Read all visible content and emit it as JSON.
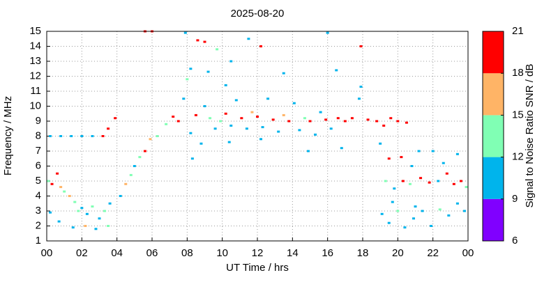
{
  "chart_data": {
    "type": "scatter",
    "title": "2025-08-20",
    "x_label": "UT Time / hrs",
    "y_label": "Frequency / MHz",
    "xlim": [
      0,
      24
    ],
    "xticks": [
      {
        "value": 0,
        "label": "00"
      },
      {
        "value": 2,
        "label": "02"
      },
      {
        "value": 4,
        "label": "04"
      },
      {
        "value": 6,
        "label": "06"
      },
      {
        "value": 8,
        "label": "08"
      },
      10,
      12,
      14,
      16,
      18,
      20,
      22,
      {
        "value": 24,
        "label": "00"
      }
    ],
    "ylim": [
      1,
      15
    ],
    "yticks": [
      1,
      2,
      3,
      4,
      5,
      6,
      7,
      8,
      9,
      10,
      11,
      12,
      13,
      14,
      15
    ],
    "grid": true,
    "colorbar": {
      "label": "Signal to Noise Ratio SNR / dB",
      "lim": [
        6,
        21
      ],
      "ticks": [
        6,
        9,
        12,
        15,
        18,
        21
      ],
      "colors": [
        "#8000ff",
        "#00b4ec",
        "#80ffb4",
        "#ffb466",
        "#ff0000"
      ]
    },
    "x": [
      0.1,
      0.3,
      0.6,
      0.8,
      1.0,
      1.3,
      1.6,
      2.0,
      2.3,
      2.6,
      3.0,
      3.3,
      3.5,
      0.2,
      0.7,
      1.5,
      2.2,
      2.8,
      3.6,
      1.8,
      0.2,
      0.8,
      1.4,
      2.0,
      2.6,
      3.2,
      3.5,
      3.9,
      4.5,
      4.8,
      5.0,
      5.3,
      5.6,
      5.9,
      4.2,
      6.3,
      6.8,
      7.2,
      7.5,
      7.8,
      8.0,
      8.2,
      8.5,
      8.8,
      9.0,
      9.3,
      9.6,
      9.9,
      10.2,
      10.5,
      10.8,
      11.1,
      11.4,
      11.7,
      12.0,
      12.3,
      12.6,
      12.9,
      13.2,
      13.5,
      13.8,
      14.1,
      14.4,
      14.7,
      15.0,
      15.3,
      15.6,
      15.9,
      16.2,
      16.6,
      17.0,
      17.4,
      17.8,
      17.9,
      16.8,
      14.9,
      12.2,
      10.4,
      8.3,
      5.6,
      6.0,
      7.9,
      8.6,
      9.0,
      9.7,
      10.5,
      11.5,
      12.2,
      13.5,
      16.0,
      16.5,
      17.9,
      8.2,
      10.2,
      9.2,
      18.3,
      18.8,
      19.2,
      19.6,
      20.0,
      20.5,
      19.0,
      19.5,
      20.2,
      20.8,
      21.2,
      19.3,
      19.8,
      20.3,
      20.7,
      21.3,
      21.8,
      22.3,
      22.8,
      23.2,
      23.6,
      23.9,
      19.1,
      19.5,
      20.0,
      20.4,
      20.9,
      21.4,
      21.9,
      22.4,
      22.9,
      23.4,
      23.8,
      19.7,
      21.0,
      22.6,
      23.4,
      22.0
    ],
    "values": [
      5.0,
      4.8,
      5.5,
      4.6,
      4.3,
      4.0,
      3.6,
      3.2,
      2.8,
      3.3,
      2.5,
      3.0,
      2.0,
      2.9,
      2.3,
      1.9,
      2.0,
      1.8,
      3.5,
      3.0,
      8.0,
      8.0,
      8.0,
      8.0,
      8.0,
      8.0,
      8.5,
      9.2,
      4.8,
      5.4,
      6.0,
      6.6,
      7.0,
      7.8,
      4.0,
      8.0,
      8.8,
      9.3,
      9.0,
      10.5,
      11.8,
      8.2,
      9.4,
      7.5,
      10.0,
      9.2,
      8.5,
      9.0,
      9.5,
      8.7,
      10.4,
      9.2,
      8.5,
      9.6,
      9.3,
      8.6,
      10.5,
      9.1,
      8.3,
      9.4,
      9.0,
      10.2,
      8.4,
      9.2,
      9.0,
      8.1,
      9.6,
      9.1,
      8.5,
      9.2,
      9.0,
      9.2,
      10.5,
      11.3,
      7.2,
      7.0,
      7.8,
      7.6,
      6.5,
      15.0,
      15.0,
      14.9,
      14.4,
      14.3,
      13.8,
      13.0,
      14.5,
      14.0,
      12.2,
      14.9,
      12.4,
      14.0,
      12.5,
      11.4,
      12.3,
      9.1,
      9.0,
      8.7,
      9.2,
      9.0,
      8.9,
      7.5,
      6.5,
      6.6,
      6.0,
      7.0,
      5.0,
      4.5,
      5.0,
      4.8,
      5.2,
      4.9,
      5.0,
      5.5,
      4.8,
      5.0,
      4.6,
      2.8,
      2.2,
      3.0,
      1.9,
      2.5,
      3.0,
      2.0,
      3.1,
      2.7,
      3.5,
      3.0,
      3.6,
      3.3,
      6.2,
      6.8,
      7.0
    ],
    "snr": [
      13,
      19,
      20,
      16,
      13,
      15,
      14,
      10,
      11,
      13,
      11,
      12,
      14,
      10,
      11,
      10,
      16,
      11,
      10,
      12,
      10,
      10,
      10,
      10,
      10,
      19,
      19,
      20,
      16,
      12,
      10,
      14,
      19,
      15,
      10,
      13,
      14,
      19,
      20,
      10,
      13,
      10,
      20,
      10,
      11,
      13,
      10,
      14,
      19,
      11,
      10,
      20,
      10,
      15,
      19,
      11,
      10,
      20,
      10,
      16,
      19,
      10,
      11,
      14,
      20,
      10,
      11,
      19,
      10,
      20,
      19,
      20,
      10,
      11,
      10,
      10,
      11,
      10,
      10,
      20,
      20,
      11,
      20,
      20,
      14,
      10,
      10,
      20,
      10,
      10,
      10,
      20,
      10,
      11,
      10,
      20,
      19,
      20,
      20,
      19,
      20,
      10,
      19,
      20,
      11,
      10,
      12,
      10,
      19,
      13,
      19,
      20,
      11,
      19,
      20,
      19,
      14,
      10,
      10,
      12,
      11,
      10,
      11,
      10,
      12,
      10,
      10,
      11,
      10,
      11,
      10,
      10,
      11
    ]
  }
}
